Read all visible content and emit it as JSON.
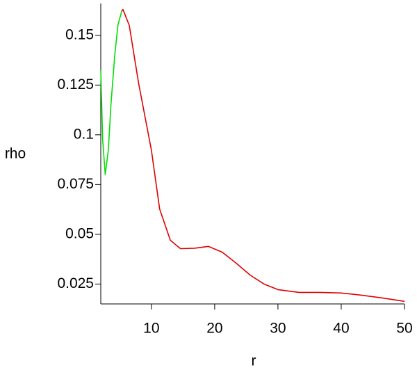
{
  "chart_data": {
    "type": "line",
    "x_label": "r",
    "y_label": "rho",
    "xlim": [
      2,
      50
    ],
    "ylim": [
      0.015,
      0.166
    ],
    "xticks": [
      10,
      20,
      30,
      40,
      50
    ],
    "yticks": [
      0.025,
      0.05,
      0.075,
      0.1,
      0.125,
      0.15
    ],
    "series": [
      {
        "color": "#00e000",
        "x": [
          2,
          2.3,
          2.7,
          3.2,
          3.6,
          4.2,
          4.7,
          5.3
        ],
        "values": [
          0.1325,
          0.0976,
          0.08,
          0.0924,
          0.115,
          0.1395,
          0.155,
          0.162
        ]
      },
      {
        "color": "#e00000",
        "x": [
          5.3,
          5.5,
          6.5,
          8,
          10,
          11.3,
          13,
          14.6,
          16.8,
          19,
          21.2,
          23.4,
          25.6,
          27.8,
          30,
          33.3,
          36.6,
          40,
          43.2,
          46.5,
          50
        ],
        "values": [
          0.162,
          0.163,
          0.155,
          0.1256,
          0.0924,
          0.0627,
          0.047,
          0.0428,
          0.043,
          0.0439,
          0.041,
          0.0355,
          0.0295,
          0.025,
          0.0222,
          0.0208,
          0.0208,
          0.0205,
          0.0194,
          0.018,
          0.0163
        ]
      }
    ]
  }
}
